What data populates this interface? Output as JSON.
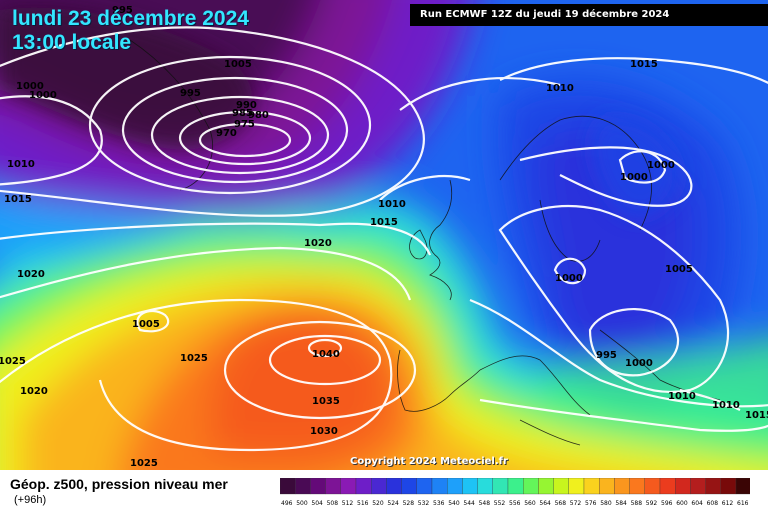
{
  "header": {
    "date_line": "lundi 23 décembre 2024",
    "time_line": "13:00 locale",
    "run_info": "Run ECMWF 12Z du jeudi 19 décembre 2024"
  },
  "copyright": "Copyright 2024 Meteociel.fr",
  "footer": {
    "title": "Géop. z500, pression niveau mer",
    "subtitle": "(+96h)"
  },
  "legend": {
    "ticks": [
      "496",
      "500",
      "504",
      "508",
      "512",
      "516",
      "520",
      "524",
      "528",
      "532",
      "536",
      "540",
      "544",
      "548",
      "552",
      "556",
      "560",
      "564",
      "568",
      "572",
      "576",
      "580",
      "584",
      "588",
      "592",
      "596",
      "600",
      "604",
      "608",
      "612",
      "616"
    ],
    "colors": [
      "#3a0a3a",
      "#4a0a55",
      "#640a78",
      "#7d1496",
      "#8a1ab4",
      "#6e1ec8",
      "#4a28d2",
      "#2a32dc",
      "#1e46e6",
      "#1e64f0",
      "#1e82f5",
      "#1ea0fa",
      "#1ec3f5",
      "#28dcdc",
      "#32e6b4",
      "#3cf08c",
      "#64f55a",
      "#96f532",
      "#c8f51e",
      "#f0f01e",
      "#fad21e",
      "#fab41e",
      "#fa961e",
      "#fa781e",
      "#f55a1e",
      "#eb3c1e",
      "#d2281e",
      "#b41e1e",
      "#961414",
      "#780a0a",
      "#3a0505"
    ]
  },
  "isobars": [
    {
      "label": "995"
    },
    {
      "label": "1000"
    },
    {
      "label": "1000"
    },
    {
      "label": "1005"
    },
    {
      "label": "995"
    },
    {
      "label": "990"
    },
    {
      "label": "985"
    },
    {
      "label": "980"
    },
    {
      "label": "975"
    },
    {
      "label": "970"
    },
    {
      "label": "1010"
    },
    {
      "label": "1015"
    },
    {
      "label": "1020"
    },
    {
      "label": "1005"
    },
    {
      "label": "1025"
    },
    {
      "label": "1025"
    },
    {
      "label": "1020"
    },
    {
      "label": "1010"
    },
    {
      "label": "1015"
    },
    {
      "label": "1020"
    },
    {
      "label": "1040"
    },
    {
      "label": "1035"
    },
    {
      "label": "1030"
    },
    {
      "label": "1025"
    },
    {
      "label": "1015"
    },
    {
      "label": "1010"
    },
    {
      "label": "1000"
    },
    {
      "label": "1000"
    },
    {
      "label": "1000"
    },
    {
      "label": "1005"
    },
    {
      "label": "995"
    },
    {
      "label": "1000"
    },
    {
      "label": "1010"
    },
    {
      "label": "1010"
    },
    {
      "label": "1015"
    }
  ]
}
